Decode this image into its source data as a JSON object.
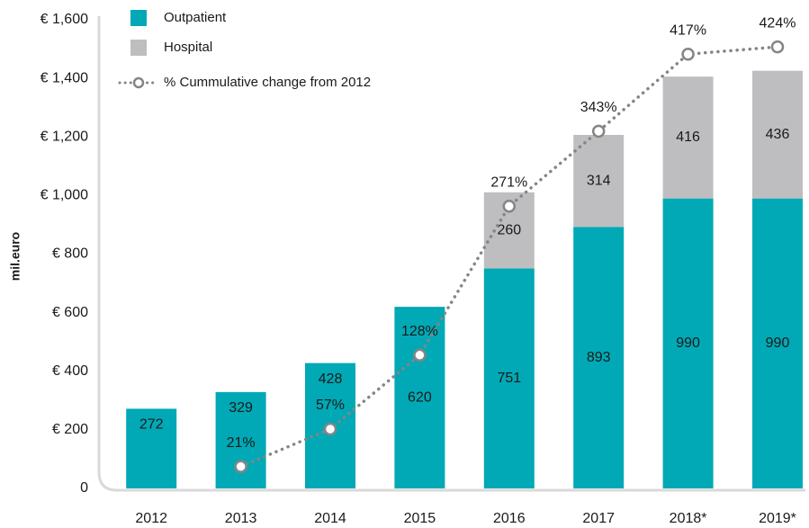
{
  "chart_data": {
    "type": "stacked-bar-line",
    "y_axis_label": "mil.euro",
    "categories": [
      "2012",
      "2013",
      "2014",
      "2015",
      "2016",
      "2017",
      "2018*",
      "2019*"
    ],
    "series": [
      {
        "name": "Outpatient",
        "type": "bar",
        "color": "#00a9b5",
        "values": [
          272,
          329,
          428,
          620,
          751,
          893,
          990,
          990
        ]
      },
      {
        "name": "Hospital",
        "type": "bar",
        "color": "#bebec0",
        "values": [
          null,
          null,
          null,
          null,
          260,
          314,
          416,
          436
        ]
      },
      {
        "name": "% Cummulative change from 2012",
        "type": "line",
        "axis": "y2",
        "color": "#858585",
        "values": [
          null,
          21,
          57,
          128,
          271,
          343,
          417,
          424
        ],
        "value_labels": [
          null,
          "21%",
          "57%",
          "128%",
          "271%",
          "343%",
          "417%",
          "424%"
        ]
      }
    ],
    "ylim": [
      0,
      1600
    ],
    "yticks": [
      0,
      {
        "value": 200,
        "label": "€ 200"
      },
      {
        "value": 400,
        "label": "€ 400"
      },
      {
        "value": 600,
        "label": "€ 600"
      },
      {
        "value": 800,
        "label": "€ 800"
      },
      {
        "value": 1000,
        "label": "€ 1,000"
      },
      {
        "value": 1200,
        "label": "€ 1,200"
      },
      {
        "value": 1400,
        "label": "€ 1,400"
      },
      {
        "value": 1600,
        "label": "€ 1,600"
      }
    ],
    "y2lim": [
      0,
      450
    ],
    "grid": false,
    "legend": "top-left"
  }
}
